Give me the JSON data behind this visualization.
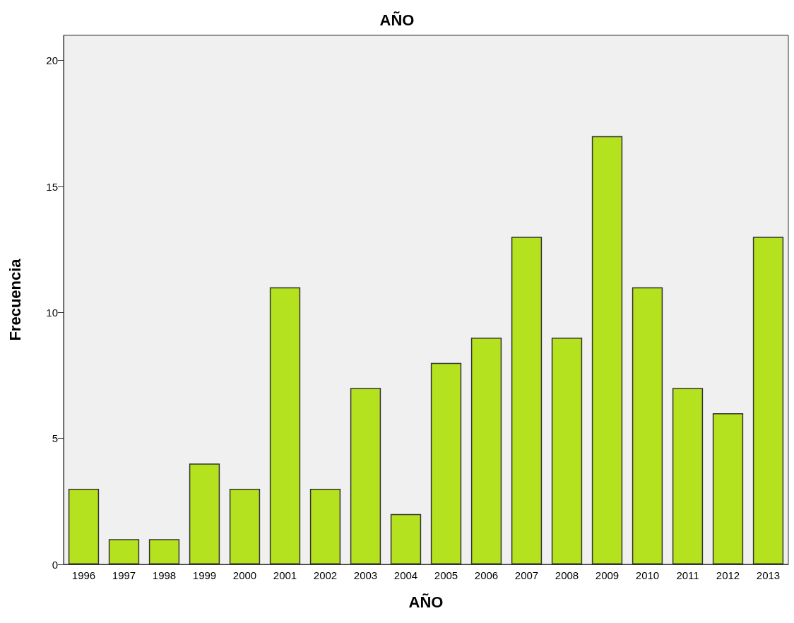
{
  "chart_data": {
    "type": "bar",
    "title": "AÑO",
    "xlabel": "AÑO",
    "ylabel": "Frecuencia",
    "categories": [
      "1996",
      "1997",
      "1998",
      "1999",
      "2000",
      "2001",
      "2002",
      "2003",
      "2004",
      "2005",
      "2006",
      "2007",
      "2008",
      "2009",
      "2010",
      "2011",
      "2012",
      "2013"
    ],
    "values": [
      3,
      1,
      1,
      4,
      3,
      11,
      3,
      7,
      2,
      8,
      9,
      13,
      9,
      17,
      11,
      7,
      6,
      13
    ],
    "color": "#b5e21e",
    "ylim": [
      0,
      21
    ],
    "yticks": [
      0,
      5,
      10,
      15,
      20
    ],
    "grid": false
  }
}
